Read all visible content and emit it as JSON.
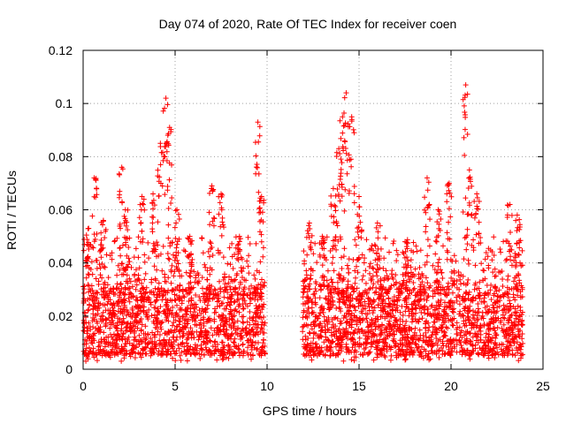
{
  "chart_data": {
    "type": "scatter",
    "title": "Day 074 of 2020, Rate Of TEC Index for receiver coen",
    "xlabel": "GPS time / hours",
    "ylabel": "ROTI / TECUs",
    "xlim": [
      0,
      25
    ],
    "ylim": [
      0,
      0.12
    ],
    "x_ticks": [
      0,
      5,
      10,
      15,
      20,
      25
    ],
    "x_tick_labels": [
      "0",
      "5",
      "10",
      "15",
      "20",
      "25"
    ],
    "y_ticks": [
      0,
      0.02,
      0.04,
      0.06,
      0.08,
      0.1,
      0.12
    ],
    "y_tick_labels": [
      "0",
      "0.02",
      "0.04",
      "0.06",
      "0.08",
      "0.1",
      "0.12"
    ],
    "grid": true,
    "marker": "+",
    "color": "#ff0000",
    "data_gap_hours": [
      9.9,
      11.9
    ],
    "segments": [
      {
        "x_start": 0.0,
        "x_end": 9.9,
        "typical_range": [
          0.005,
          0.03
        ]
      },
      {
        "x_start": 11.9,
        "x_end": 23.9,
        "typical_range": [
          0.005,
          0.03
        ]
      }
    ],
    "peaks": [
      {
        "x": 0.3,
        "y": 0.053
      },
      {
        "x": 0.6,
        "y": 0.072
      },
      {
        "x": 1.1,
        "y": 0.056
      },
      {
        "x": 2.1,
        "y": 0.076
      },
      {
        "x": 2.3,
        "y": 0.06
      },
      {
        "x": 3.2,
        "y": 0.065
      },
      {
        "x": 3.8,
        "y": 0.066
      },
      {
        "x": 4.2,
        "y": 0.085
      },
      {
        "x": 4.5,
        "y": 0.102
      },
      {
        "x": 4.7,
        "y": 0.091
      },
      {
        "x": 5.1,
        "y": 0.06
      },
      {
        "x": 5.8,
        "y": 0.05
      },
      {
        "x": 7.0,
        "y": 0.069
      },
      {
        "x": 7.5,
        "y": 0.066
      },
      {
        "x": 8.5,
        "y": 0.05
      },
      {
        "x": 9.5,
        "y": 0.093
      },
      {
        "x": 9.7,
        "y": 0.065
      },
      {
        "x": 12.3,
        "y": 0.055
      },
      {
        "x": 13.0,
        "y": 0.05
      },
      {
        "x": 13.6,
        "y": 0.068
      },
      {
        "x": 13.9,
        "y": 0.083
      },
      {
        "x": 14.1,
        "y": 0.095
      },
      {
        "x": 14.3,
        "y": 0.104
      },
      {
        "x": 14.6,
        "y": 0.095
      },
      {
        "x": 15.0,
        "y": 0.065
      },
      {
        "x": 16.0,
        "y": 0.055
      },
      {
        "x": 17.5,
        "y": 0.048
      },
      {
        "x": 18.7,
        "y": 0.072
      },
      {
        "x": 19.3,
        "y": 0.06
      },
      {
        "x": 19.9,
        "y": 0.07
      },
      {
        "x": 20.8,
        "y": 0.107
      },
      {
        "x": 21.0,
        "y": 0.075
      },
      {
        "x": 21.4,
        "y": 0.066
      },
      {
        "x": 23.2,
        "y": 0.062
      },
      {
        "x": 23.6,
        "y": 0.058
      }
    ]
  }
}
